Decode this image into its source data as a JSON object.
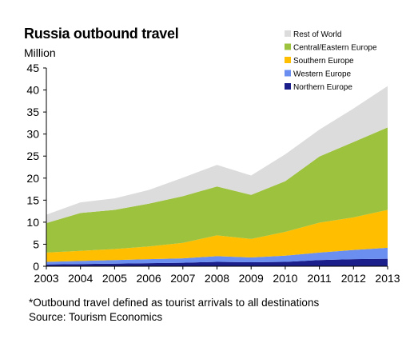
{
  "chart_data": {
    "type": "area",
    "stacked": true,
    "title": "Russia outbound travel",
    "ylabel": "Million",
    "xlabel": "",
    "x": [
      "2003",
      "2004",
      "2005",
      "2006",
      "2007",
      "2008",
      "2009",
      "2010",
      "2011",
      "2012",
      "2013"
    ],
    "ylim": [
      0,
      45
    ],
    "yticks": [
      0,
      5,
      10,
      15,
      20,
      25,
      30,
      35,
      40,
      45
    ],
    "grid": false,
    "legend_position": "top-right",
    "series": [
      {
        "name": "Northern Europe",
        "color": "#1b1f8c",
        "values": [
          0.4,
          0.5,
          0.6,
          0.7,
          0.8,
          1.0,
          0.9,
          1.0,
          1.4,
          1.6,
          1.7
        ]
      },
      {
        "name": "Western Europe",
        "color": "#6b8ff0",
        "values": [
          0.6,
          0.7,
          0.8,
          0.9,
          1.0,
          1.3,
          1.1,
          1.4,
          1.7,
          2.1,
          2.5
        ]
      },
      {
        "name": "Southern Europe",
        "color": "#ffbf00",
        "values": [
          2.1,
          2.3,
          2.5,
          2.9,
          3.5,
          4.7,
          4.2,
          5.4,
          6.8,
          7.4,
          8.6
        ]
      },
      {
        "name": "Central/Eastern Europe",
        "color": "#9dc23e",
        "values": [
          6.7,
          8.6,
          8.9,
          9.7,
          10.6,
          11.1,
          10.0,
          11.5,
          15.0,
          17.1,
          18.7
        ]
      },
      {
        "name": "Rest of World",
        "color": "#dcdcdc",
        "values": [
          1.9,
          2.4,
          2.6,
          3.1,
          4.2,
          4.9,
          4.4,
          6.1,
          6.1,
          7.6,
          9.4
        ]
      }
    ]
  },
  "footnote": "*Outbound travel defined as tourist arrivals to all destinations",
  "source": "Source: Tourism Economics"
}
